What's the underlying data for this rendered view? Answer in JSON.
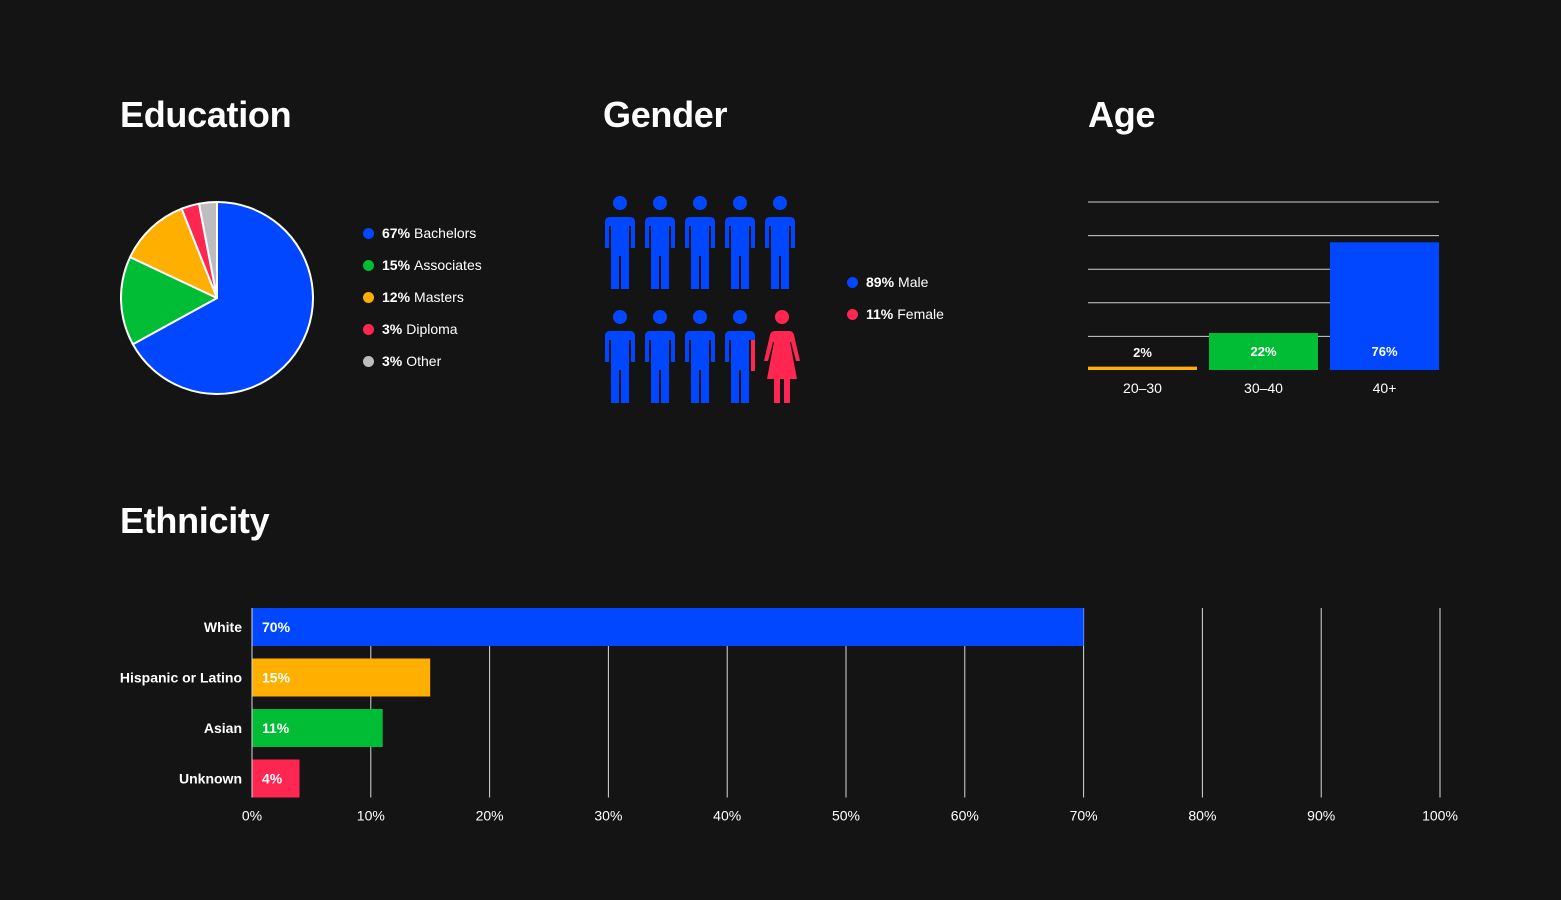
{
  "colors": {
    "blue": "#0047FF",
    "green": "#00BD35",
    "orange": "#FFAF00",
    "red": "#FF2651",
    "gray": "#BDBDBD",
    "background": "#141414"
  },
  "sections": {
    "education": "Education",
    "gender": "Gender",
    "age": "Age",
    "ethnicity": "Ethnicity"
  },
  "chart_data": [
    {
      "id": "education",
      "type": "pie",
      "title": "Education",
      "slices": [
        {
          "label": "Bachelors",
          "pct_label": "67%",
          "value": 67,
          "color": "#0047FF"
        },
        {
          "label": "Associates",
          "pct_label": "15%",
          "value": 15,
          "color": "#00BD35"
        },
        {
          "label": "Masters",
          "pct_label": "12%",
          "value": 12,
          "color": "#FFAF00"
        },
        {
          "label": "Diploma",
          "pct_label": "3%",
          "value": 3,
          "color": "#FF2651"
        },
        {
          "label": "Other",
          "pct_label": "3%",
          "value": 3,
          "color": "#BDBDBD"
        }
      ],
      "legend_position": "right"
    },
    {
      "id": "gender",
      "type": "pictogram",
      "title": "Gender",
      "icons_total": 10,
      "icons_male": 9,
      "icons_female": 1,
      "series": [
        {
          "label": "Male",
          "pct_label": "89%",
          "value": 89,
          "color": "#0047FF"
        },
        {
          "label": "Female",
          "pct_label": "11%",
          "value": 11,
          "color": "#FF2651"
        }
      ],
      "legend_position": "right"
    },
    {
      "id": "age",
      "type": "bar",
      "title": "Age",
      "categories": [
        "20–30",
        "30–40",
        "40+"
      ],
      "values": [
        2,
        22,
        76
      ],
      "value_labels": [
        "2%",
        "22%",
        "76%"
      ],
      "colors": [
        "#FFAF00",
        "#00BD35",
        "#0047FF"
      ],
      "ylim": [
        0,
        100
      ],
      "grid": true
    },
    {
      "id": "ethnicity",
      "type": "bar",
      "orientation": "horizontal",
      "title": "Ethnicity",
      "categories": [
        "White",
        "Hispanic or Latino",
        "Asian",
        "Unknown"
      ],
      "values": [
        70,
        15,
        11,
        4
      ],
      "value_labels": [
        "70%",
        "15%",
        "11%",
        "4%"
      ],
      "colors": [
        "#0047FF",
        "#FFAF00",
        "#00BD35",
        "#FF2651"
      ],
      "xlim": [
        0,
        100
      ],
      "x_ticks": [
        "0%",
        "10%",
        "20%",
        "30%",
        "40%",
        "50%",
        "60%",
        "70%",
        "80%",
        "90%",
        "100%"
      ],
      "grid": true
    }
  ]
}
